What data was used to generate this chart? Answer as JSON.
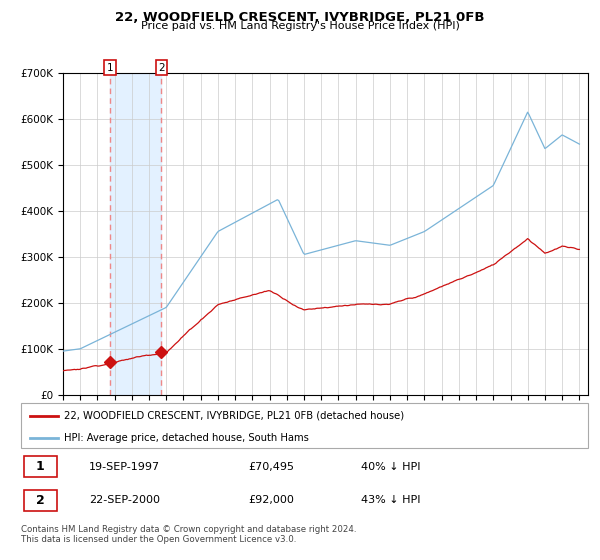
{
  "title1": "22, WOODFIELD CRESCENT, IVYBRIDGE, PL21 0FB",
  "title2": "Price paid vs. HM Land Registry's House Price Index (HPI)",
  "ylim": [
    0,
    700000
  ],
  "yticks": [
    0,
    100000,
    200000,
    300000,
    400000,
    500000,
    600000,
    700000
  ],
  "hpi_color": "#7ab4d8",
  "hpi_fill_color": "#ddeeff",
  "price_color": "#cc1111",
  "vline_color": "#ee8888",
  "marker_color": "#cc1111",
  "legend_label_red": "22, WOODFIELD CRESCENT, IVYBRIDGE, PL21 0FB (detached house)",
  "legend_label_blue": "HPI: Average price, detached house, South Hams",
  "transaction1_date": "19-SEP-1997",
  "transaction1_price": "£70,495",
  "transaction1_pct": "40% ↓ HPI",
  "transaction2_date": "22-SEP-2000",
  "transaction2_price": "£92,000",
  "transaction2_pct": "43% ↓ HPI",
  "footnote": "Contains HM Land Registry data © Crown copyright and database right 2024.\nThis data is licensed under the Open Government Licence v3.0.",
  "transaction1_year": 1997.72,
  "transaction2_year": 2000.72,
  "transaction1_price_val": 70495,
  "transaction2_price_val": 92000,
  "xlim_start": 1995,
  "xlim_end": 2025.3
}
